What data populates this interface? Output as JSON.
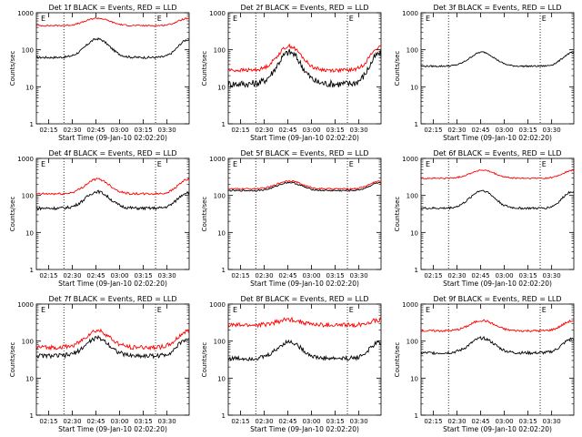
{
  "chart_data": [
    {
      "type": "line",
      "title": "Det 1f BLACK = Events, RED = LLD",
      "xlabel": "Start Time (09-Jan-10 02:02:20)",
      "ylabel": "Counts/sec",
      "yscale": "log",
      "ylim": [
        1,
        1000
      ],
      "x_ticks": [
        "02:15",
        "02:30",
        "02:45",
        "03:00",
        "03:15",
        "03:30"
      ],
      "y_ticks": [
        "1",
        "10",
        "100",
        "1000"
      ],
      "markers": [
        "E",
        "E"
      ],
      "series": [
        {
          "color": "#000000",
          "base": 62,
          "amp": 0.5,
          "noise": 0.03
        },
        {
          "color": "#ff0000",
          "base": 450,
          "amp": 0.2,
          "noise": 0.02
        }
      ]
    },
    {
      "type": "line",
      "title": "Det 2f BLACK = Events, RED = LLD",
      "xlabel": "Start Time (09-Jan-10 02:02:20)",
      "ylabel": "Counts/sec",
      "yscale": "log",
      "ylim": [
        1,
        1000
      ],
      "x_ticks": [
        "02:15",
        "02:30",
        "02:45",
        "03:00",
        "03:15",
        "03:30"
      ],
      "y_ticks": [
        "1",
        "10",
        "100",
        "1000"
      ],
      "markers": [
        "E",
        "E"
      ],
      "series": [
        {
          "color": "#000000",
          "base": 12,
          "amp": 0.85,
          "noise": 0.1
        },
        {
          "color": "#ff0000",
          "base": 28,
          "amp": 0.65,
          "noise": 0.05
        }
      ]
    },
    {
      "type": "line",
      "title": "Det 3f BLACK = Events, RED = LLD",
      "xlabel": "Start Time (09-Jan-10 02:02:20)",
      "ylabel": "Counts/sec",
      "yscale": "log",
      "ylim": [
        1,
        1000
      ],
      "x_ticks": [
        "02:15",
        "02:30",
        "02:45",
        "03:00",
        "03:15",
        "03:30"
      ],
      "y_ticks": [
        "1",
        "10",
        "100",
        "1000"
      ],
      "markers": [
        "E",
        "E"
      ],
      "series": [
        {
          "color": "#000000",
          "base": 36,
          "amp": 0.38,
          "noise": 0.02
        }
      ]
    },
    {
      "type": "line",
      "title": "Det 4f BLACK = Events, RED = LLD",
      "xlabel": "Start Time (09-Jan-10 02:02:20)",
      "ylabel": "Counts/sec",
      "yscale": "log",
      "ylim": [
        1,
        1000
      ],
      "x_ticks": [
        "02:15",
        "02:30",
        "02:45",
        "03:00",
        "03:15",
        "03:30"
      ],
      "y_ticks": [
        "1",
        "10",
        "100",
        "1000"
      ],
      "markers": [
        "E",
        "E"
      ],
      "series": [
        {
          "color": "#000000",
          "base": 45,
          "amp": 0.45,
          "noise": 0.04
        },
        {
          "color": "#ff0000",
          "base": 110,
          "amp": 0.4,
          "noise": 0.03
        }
      ]
    },
    {
      "type": "line",
      "title": "Det 5f BLACK = Events, RED = LLD",
      "xlabel": "Start Time (09-Jan-10 02:02:20)",
      "ylabel": "Counts/sec",
      "yscale": "log",
      "ylim": [
        1,
        1000
      ],
      "x_ticks": [
        "02:15",
        "02:30",
        "02:45",
        "03:00",
        "03:15",
        "03:30"
      ],
      "y_ticks": [
        "1",
        "10",
        "100",
        "1000"
      ],
      "markers": [
        "E",
        "E"
      ],
      "series": [
        {
          "color": "#000000",
          "base": 135,
          "amp": 0.22,
          "noise": 0.02
        },
        {
          "color": "#ff0000",
          "base": 150,
          "amp": 0.22,
          "noise": 0.02
        }
      ]
    },
    {
      "type": "line",
      "title": "Det 6f BLACK = Events, RED = LLD",
      "xlabel": "Start Time (09-Jan-10 02:02:20)",
      "ylabel": "Counts/sec",
      "yscale": "log",
      "ylim": [
        1,
        1000
      ],
      "x_ticks": [
        "02:15",
        "02:30",
        "02:45",
        "03:00",
        "03:15",
        "03:30"
      ],
      "y_ticks": [
        "1",
        "10",
        "100",
        "1000"
      ],
      "markers": [
        "E",
        "E"
      ],
      "series": [
        {
          "color": "#000000",
          "base": 45,
          "amp": 0.48,
          "noise": 0.03
        },
        {
          "color": "#ff0000",
          "base": 290,
          "amp": 0.22,
          "noise": 0.02
        }
      ]
    },
    {
      "type": "line",
      "title": "Det 7f BLACK = Events, RED = LLD",
      "xlabel": "Start Time (09-Jan-10 02:02:20)",
      "ylabel": "Counts/sec",
      "yscale": "log",
      "ylim": [
        1,
        1000
      ],
      "x_ticks": [
        "02:15",
        "02:30",
        "02:45",
        "03:00",
        "03:15",
        "03:30"
      ],
      "y_ticks": [
        "1",
        "10",
        "100",
        "1000"
      ],
      "markers": [
        "E",
        "E"
      ],
      "series": [
        {
          "color": "#000000",
          "base": 40,
          "amp": 0.48,
          "noise": 0.06
        },
        {
          "color": "#ff0000",
          "base": 68,
          "amp": 0.45,
          "noise": 0.06
        }
      ]
    },
    {
      "type": "line",
      "title": "Det 8f BLACK = Events, RED = LLD",
      "xlabel": "Start Time (09-Jan-10 02:02:20)",
      "ylabel": "Counts/sec",
      "yscale": "log",
      "ylim": [
        1,
        1000
      ],
      "x_ticks": [
        "02:15",
        "02:30",
        "02:45",
        "03:00",
        "03:15",
        "03:30"
      ],
      "y_ticks": [
        "1",
        "10",
        "100",
        "1000"
      ],
      "markers": [
        "E",
        "E"
      ],
      "series": [
        {
          "color": "#000000",
          "base": 34,
          "amp": 0.45,
          "noise": 0.06
        },
        {
          "color": "#ff0000",
          "base": 270,
          "amp": 0.15,
          "noise": 0.06
        }
      ]
    },
    {
      "type": "line",
      "title": "Det 9f BLACK = Events, RED = LLD",
      "xlabel": "Start Time (09-Jan-10 02:02:20)",
      "ylabel": "Counts/sec",
      "yscale": "log",
      "ylim": [
        1,
        1000
      ],
      "x_ticks": [
        "02:15",
        "02:30",
        "02:45",
        "03:00",
        "03:15",
        "03:30"
      ],
      "y_ticks": [
        "1",
        "10",
        "100",
        "1000"
      ],
      "markers": [
        "E",
        "E"
      ],
      "series": [
        {
          "color": "#000000",
          "base": 48,
          "amp": 0.4,
          "noise": 0.04
        },
        {
          "color": "#ff0000",
          "base": 190,
          "amp": 0.28,
          "noise": 0.03
        }
      ]
    }
  ]
}
